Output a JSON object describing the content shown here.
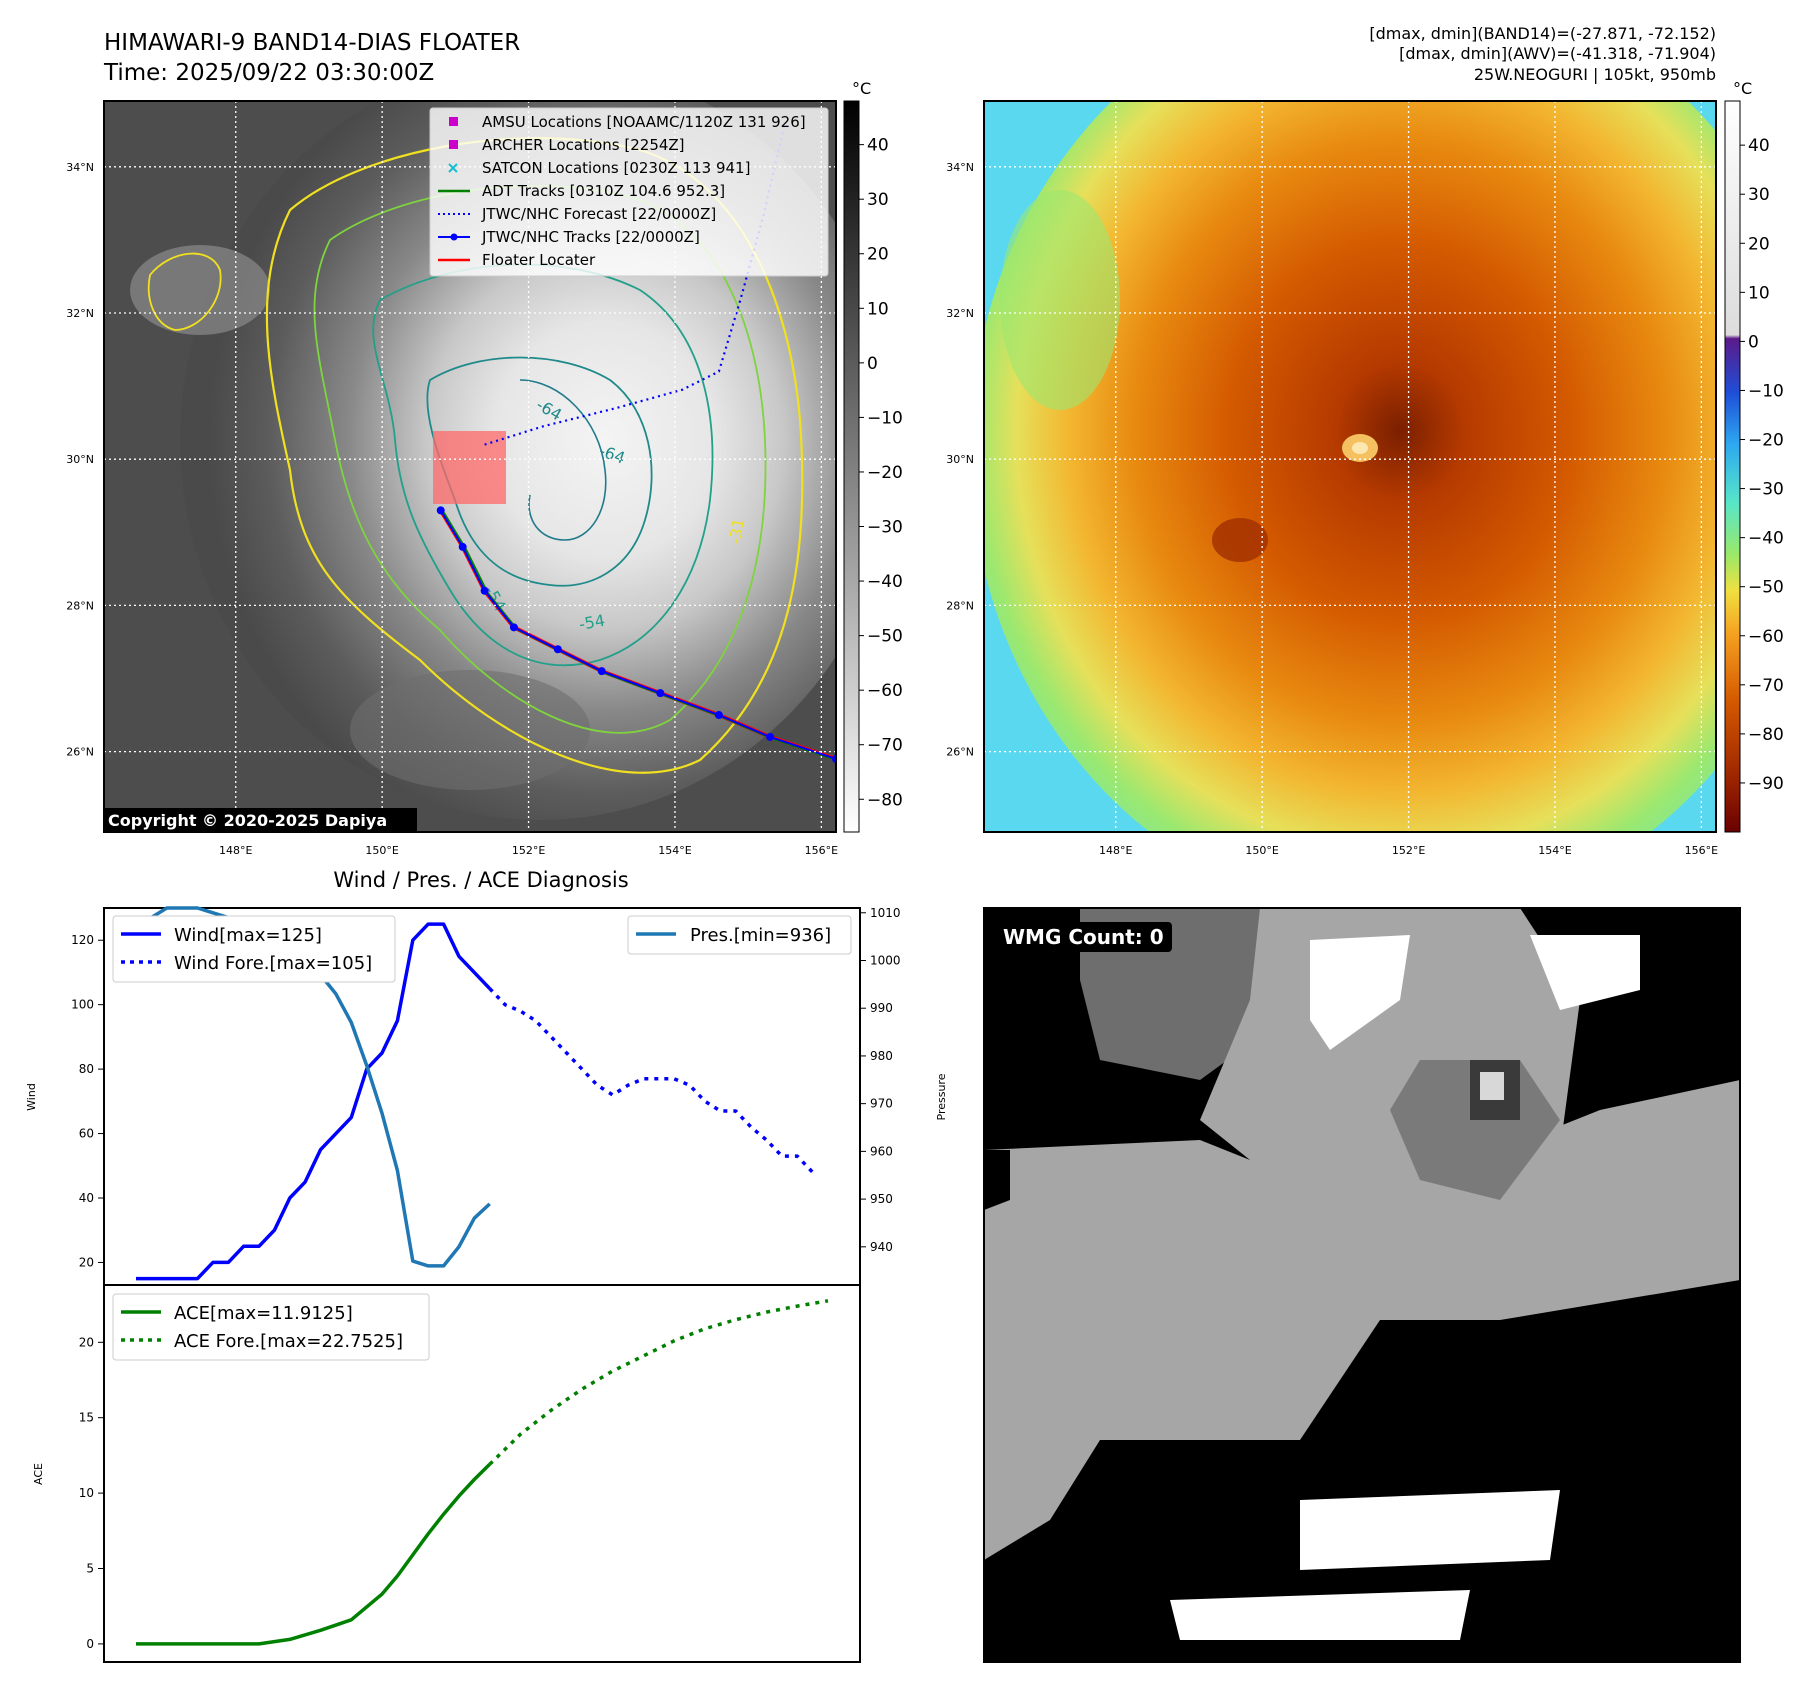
{
  "header": {
    "title_line1": "HIMAWARI-9 BAND14-DIAS FLOATER",
    "title_line2": "Time: 2025/09/22 03:30:00Z",
    "info_line1": "[dmax, dmin](BAND14)=(-27.871, -72.152)",
    "info_line2": "[dmax, dmin](AWV)=(-41.318, -71.904)",
    "info_line3": "25W.NEOGURI | 105kt, 950mb"
  },
  "ir_map": {
    "lat_labels": [
      "34°N",
      "32°N",
      "30°N",
      "28°N",
      "26°N"
    ],
    "lat_values": [
      34,
      32,
      30,
      28,
      26
    ],
    "lon_labels": [
      "148°E",
      "150°E",
      "152°E",
      "154°E",
      "156°E"
    ],
    "lon_values": [
      148,
      150,
      152,
      154,
      156
    ],
    "lon_range": [
      146.2,
      156.2
    ],
    "lat_range": [
      24.9,
      34.9
    ],
    "copyright": "Copyright © 2020-2025 Dapiya",
    "contour_labels": [
      "-64",
      "-64",
      "-54",
      "-54",
      "-31"
    ],
    "legend": [
      {
        "label": "AMSU Locations [NOAAMC/1120Z 131 926]",
        "kind": "square",
        "color": "#cc00cc"
      },
      {
        "label": "ARCHER Locations [2254Z]",
        "kind": "square",
        "color": "#cc00cc"
      },
      {
        "label": "SATCON Locations [0230Z 113 941]",
        "kind": "x",
        "color": "#17becf"
      },
      {
        "label": "ADT Tracks [0310Z 104.6 952.3]",
        "kind": "line",
        "color": "#008000"
      },
      {
        "label": "JTWC/NHC Forecast [22/0000Z]",
        "kind": "dotted",
        "color": "#0000ff"
      },
      {
        "label": "JTWC/NHC Tracks [22/0000Z]",
        "kind": "line-dot",
        "color": "#0000ff"
      },
      {
        "label": "Floater Locater",
        "kind": "line",
        "color": "#ff0000"
      }
    ],
    "track_lonlat": [
      [
        150.8,
        29.3
      ],
      [
        151.1,
        28.8
      ],
      [
        151.4,
        28.2
      ],
      [
        151.8,
        27.7
      ],
      [
        152.4,
        27.4
      ],
      [
        153.0,
        27.1
      ],
      [
        153.8,
        26.8
      ],
      [
        154.6,
        26.5
      ],
      [
        155.3,
        26.2
      ],
      [
        156.2,
        25.9
      ]
    ],
    "forecast_lonlat": [
      [
        151.4,
        30.2
      ],
      [
        152.2,
        30.45
      ],
      [
        153.2,
        30.7
      ],
      [
        154.1,
        30.95
      ],
      [
        154.6,
        31.2
      ],
      [
        154.9,
        32.2
      ],
      [
        155.2,
        33.3
      ],
      [
        155.5,
        34.6
      ]
    ],
    "colorbar": {
      "unit": "°C",
      "ticks": [
        40,
        30,
        20,
        10,
        0,
        -10,
        -20,
        -30,
        -40,
        -50,
        -60,
        -70,
        -80
      ],
      "range": [
        48,
        -86
      ]
    }
  },
  "awv_map": {
    "lat_labels": [
      "34°N",
      "32°N",
      "30°N",
      "28°N",
      "26°N"
    ],
    "lon_labels": [
      "148°E",
      "150°E",
      "152°E",
      "154°E",
      "156°E"
    ],
    "colorbar": {
      "unit": "°C",
      "ticks": [
        40,
        30,
        20,
        10,
        0,
        -10,
        -20,
        -30,
        -40,
        -50,
        -60,
        -70,
        -80,
        -90
      ],
      "range": [
        49,
        -100
      ]
    }
  },
  "diag": {
    "title": "Wind / Pres. / ACE Diagnosis",
    "wind_ylabel": "Wind",
    "pres_ylabel": "Pressure",
    "ace_ylabel": "ACE",
    "legend_wind": "Wind[max=125]",
    "legend_wind_fore": "Wind Fore.[max=105]",
    "legend_pres": "Pres.[min=936]",
    "legend_ace": "ACE[max=11.9125]",
    "legend_ace_fore": "ACE Fore.[max=22.7525]"
  },
  "chart_data": [
    {
      "type": "line",
      "x_range": [
        0,
        45
      ],
      "y_axis_left": {
        "ylabel": "Wind",
        "ylim": [
          13,
          130
        ],
        "ticks": [
          20,
          40,
          60,
          80,
          100,
          120
        ]
      },
      "y_axis_right": {
        "ylabel": "Pressure",
        "ylim": [
          932,
          1011
        ],
        "ticks": [
          940,
          950,
          960,
          970,
          980,
          990,
          1000,
          1010
        ]
      },
      "series": [
        {
          "name": "Wind[max=125]",
          "axis": "left",
          "style": "solid",
          "color": "#0000ff",
          "x": [
            0,
            1,
            2,
            3,
            4,
            5,
            6,
            7,
            8,
            9,
            10,
            11,
            12,
            13,
            14,
            15,
            16,
            17,
            18,
            19,
            20,
            21,
            22,
            23
          ],
          "y": [
            15,
            15,
            15,
            15,
            15,
            20,
            20,
            25,
            25,
            30,
            40,
            45,
            55,
            60,
            65,
            80,
            85,
            95,
            120,
            125,
            125,
            115,
            110,
            105
          ]
        },
        {
          "name": "Wind Fore.[max=105]",
          "axis": "left",
          "style": "dotted",
          "color": "#0000ff",
          "x": [
            23,
            24,
            25,
            26,
            27,
            28,
            29,
            30,
            31,
            32,
            33,
            34,
            35,
            36,
            37,
            38,
            39,
            40,
            41,
            42,
            43,
            44
          ],
          "y": [
            105,
            100,
            98,
            95,
            90,
            85,
            80,
            75,
            72,
            75,
            77,
            77,
            77,
            75,
            70,
            67,
            67,
            62,
            58,
            53,
            53,
            48
          ]
        },
        {
          "name": "Pres.[min=936]",
          "axis": "right",
          "style": "solid",
          "color": "#1f77b4",
          "x": [
            0,
            1,
            2,
            3,
            4,
            5,
            6,
            7,
            8,
            9,
            10,
            11,
            12,
            13,
            14,
            15,
            16,
            17,
            18,
            19,
            20,
            21,
            22,
            23
          ],
          "y": [
            1009,
            1009,
            1011,
            1011,
            1011,
            1010,
            1009,
            1009,
            1009,
            1008,
            1005,
            998,
            997,
            993,
            987,
            978,
            968,
            956,
            937,
            936,
            936,
            940,
            946,
            949
          ]
        }
      ]
    },
    {
      "type": "line",
      "x_range": [
        0,
        45
      ],
      "y_axis_left": {
        "ylabel": "ACE",
        "ylim": [
          -1.2,
          23.8
        ],
        "ticks": [
          0,
          5,
          10,
          15,
          20
        ]
      },
      "series": [
        {
          "name": "ACE[max=11.9125]",
          "style": "solid",
          "color": "#008000",
          "x": [
            0,
            2,
            4,
            6,
            8,
            10,
            12,
            14,
            16,
            17,
            18,
            19,
            20,
            21,
            22,
            23
          ],
          "y": [
            0,
            0,
            0,
            0,
            0,
            0.3,
            0.9,
            1.6,
            3.3,
            4.5,
            5.9,
            7.3,
            8.6,
            9.8,
            10.9,
            11.9125
          ]
        },
        {
          "name": "ACE Fore.[max=22.7525]",
          "style": "dotted",
          "color": "#008000",
          "x": [
            23,
            25,
            27,
            29,
            31,
            33,
            35,
            37,
            39,
            41,
            43,
            45
          ],
          "y": [
            11.9125,
            13.9,
            15.5,
            16.9,
            18.1,
            19.1,
            20.1,
            20.9,
            21.5,
            22.0,
            22.4,
            22.7525
          ]
        }
      ]
    }
  ],
  "wmg": {
    "label": "WMG Count: 0"
  }
}
